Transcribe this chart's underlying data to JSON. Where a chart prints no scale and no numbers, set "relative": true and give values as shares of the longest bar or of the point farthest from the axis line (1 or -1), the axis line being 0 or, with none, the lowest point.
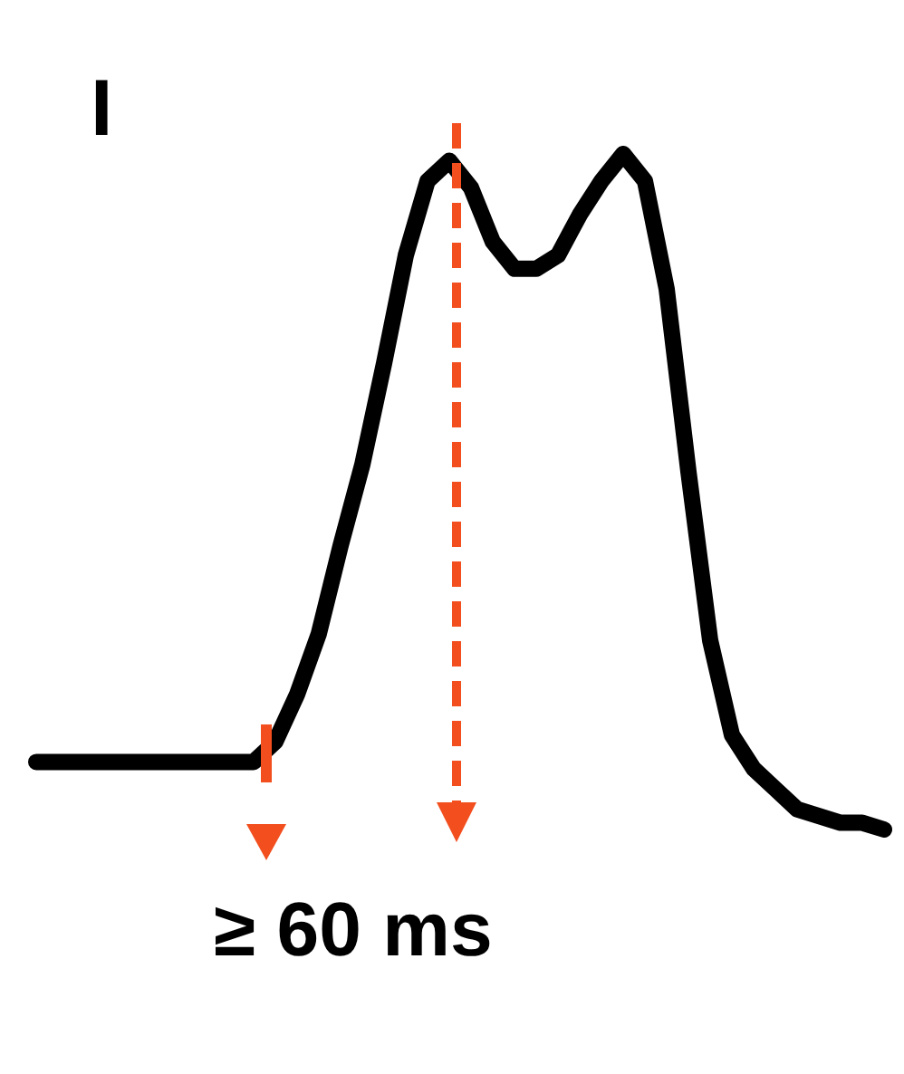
{
  "chart_data": {
    "type": "line",
    "relative": true,
    "title": "I",
    "annotations": [
      "≥ 60 ms"
    ],
    "categories": [
      null,
      null,
      null,
      null,
      null,
      null,
      null,
      null,
      null,
      null,
      null,
      null,
      null,
      null,
      null,
      null,
      null,
      null,
      null,
      null,
      null,
      null,
      null,
      null,
      null,
      null,
      null,
      null,
      null,
      null,
      null,
      null,
      null,
      null,
      null,
      null,
      null,
      null,
      null,
      null
    ],
    "series": [
      {
        "color": "#000000",
        "values": [
          0.1,
          0.1,
          0.1,
          0.1,
          0.1,
          0.1,
          0.1,
          0.1,
          0.1,
          0.1,
          0.1,
          0.13,
          0.2,
          0.29,
          0.42,
          0.54,
          0.69,
          0.85,
          0.96,
          0.99,
          0.95,
          0.87,
          0.83,
          0.83,
          0.85,
          0.91,
          0.96,
          1,
          0.96,
          0.8,
          0.53,
          0.28,
          0.14,
          0.09,
          0.06,
          0.03,
          0.02,
          0.01,
          0.01,
          0
        ]
      }
    ],
    "line_style": "solid"
  }
}
